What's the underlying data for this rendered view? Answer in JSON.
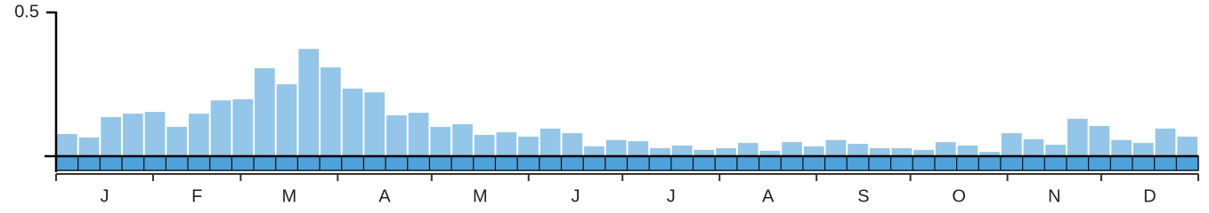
{
  "chart_data": {
    "type": "bar",
    "categories": [
      null,
      null,
      null,
      null,
      null,
      null,
      null,
      null,
      null,
      null,
      null,
      null,
      null,
      null,
      null,
      null,
      null,
      null,
      null,
      null,
      null,
      null,
      null,
      null,
      null,
      null,
      null,
      null,
      null,
      null,
      null,
      null,
      null,
      null,
      null,
      null,
      null,
      null,
      null,
      null,
      null,
      null,
      null,
      null,
      null,
      null,
      null,
      null,
      null,
      null,
      null,
      null
    ],
    "values": [
      0.077,
      0.065,
      0.136,
      0.148,
      0.154,
      0.102,
      0.148,
      0.194,
      0.198,
      0.306,
      0.25,
      0.373,
      0.309,
      0.235,
      0.222,
      0.142,
      0.151,
      0.102,
      0.111,
      0.074,
      0.083,
      0.068,
      0.096,
      0.08,
      0.034,
      0.056,
      0.052,
      0.028,
      0.037,
      0.022,
      0.028,
      0.046,
      0.019,
      0.049,
      0.034,
      0.056,
      0.043,
      0.028,
      0.028,
      0.022,
      0.049,
      0.037,
      0.015,
      0.08,
      0.059,
      0.04,
      0.13,
      0.105,
      0.056,
      0.046,
      0.096,
      0.068
    ],
    "color": "#93c6e8",
    "ylim": [
      0,
      0.5
    ],
    "yticks": [
      0.5
    ],
    "months": [
      "J",
      "F",
      "M",
      "A",
      "M",
      "J",
      "J",
      "A",
      "S",
      "O",
      "N",
      "D"
    ]
  }
}
